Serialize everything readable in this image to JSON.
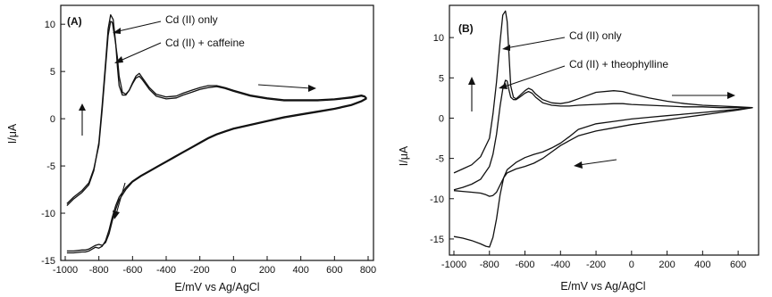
{
  "chart_data": [
    {
      "type": "line",
      "panel_label": "(A)",
      "xlabel": "E/mV vs Ag/AgCl",
      "ylabel": "I/μA",
      "xlim": [
        -1000,
        800
      ],
      "ylim": [
        -15,
        12
      ],
      "x_ticks": [
        -1000,
        -800,
        -600,
        -400,
        -200,
        0,
        200,
        400,
        600,
        800
      ],
      "x_tick_labels": [
        "-1000",
        "-800",
        "-600",
        "-400",
        "-200",
        "0",
        "200",
        "400",
        "600",
        "800"
      ],
      "y_ticks": [
        -15,
        -10,
        -5,
        0,
        5,
        10
      ],
      "y_tick_labels": [
        "-15",
        "-10",
        "-5",
        "0",
        "5",
        "10"
      ],
      "grid": false,
      "annotations": [
        "Cd (II) only",
        "Cd (II) + caffeine"
      ],
      "series": [
        {
          "name": "Cd (II) only",
          "x": [
            -990,
            -950,
            -900,
            -860,
            -830,
            -800,
            -780,
            -760,
            -745,
            -730,
            -715,
            -700,
            -690,
            -680,
            -660,
            -640,
            -620,
            -600,
            -580,
            -560,
            -540,
            -500,
            -460,
            -400,
            -340,
            -300,
            -250,
            -200,
            -150,
            -100,
            -50,
            0,
            100,
            200,
            300,
            400,
            500,
            600,
            700,
            760,
            780,
            790,
            760,
            700,
            600,
            500,
            400,
            300,
            200,
            100,
            0,
            -50,
            -100,
            -150,
            -200,
            -250,
            -300,
            -350,
            -400,
            -450,
            -500,
            -550,
            -600,
            -640,
            -680,
            -700,
            -720,
            -740,
            -760,
            -780,
            -800,
            -820,
            -840,
            -860,
            -880,
            -900,
            -950,
            -990
          ],
          "y": [
            -9.2,
            -8.5,
            -7.8,
            -7.0,
            -5.5,
            -2.5,
            1.5,
            6.0,
            9.5,
            11.0,
            10.5,
            8.0,
            5.5,
            3.5,
            2.5,
            2.5,
            3.0,
            3.8,
            4.5,
            4.8,
            4.3,
            3.3,
            2.6,
            2.3,
            2.4,
            2.7,
            3.0,
            3.3,
            3.5,
            3.5,
            3.3,
            3.0,
            2.5,
            2.2,
            2.0,
            2.0,
            2.0,
            2.1,
            2.3,
            2.5,
            2.4,
            2.2,
            1.9,
            1.5,
            1.1,
            0.8,
            0.5,
            0.2,
            -0.2,
            -0.6,
            -1.0,
            -1.3,
            -1.6,
            -2.0,
            -2.5,
            -3.0,
            -3.5,
            -4.0,
            -4.5,
            -5.0,
            -5.5,
            -6.0,
            -6.6,
            -7.3,
            -8.3,
            -9.2,
            -10.4,
            -11.8,
            -12.9,
            -13.5,
            -13.7,
            -13.6,
            -13.8,
            -14.0,
            -14.1,
            -14.1,
            -14.2,
            -14.2
          ]
        },
        {
          "name": "Cd (II) + caffeine",
          "x": [
            -990,
            -950,
            -900,
            -860,
            -830,
            -800,
            -780,
            -760,
            -745,
            -730,
            -720,
            -705,
            -690,
            -680,
            -660,
            -640,
            -620,
            -600,
            -580,
            -560,
            -540,
            -500,
            -460,
            -400,
            -340,
            -300,
            -250,
            -200,
            -150,
            -100,
            -50,
            0,
            100,
            200,
            300,
            400,
            500,
            600,
            700,
            760,
            780,
            790,
            760,
            700,
            600,
            500,
            400,
            300,
            200,
            100,
            0,
            -50,
            -100,
            -150,
            -200,
            -250,
            -300,
            -350,
            -400,
            -450,
            -500,
            -550,
            -600,
            -640,
            -680,
            -700,
            -720,
            -740,
            -760,
            -780,
            -800,
            -820,
            -840,
            -860,
            -880,
            -900,
            -950,
            -990
          ],
          "y": [
            -9.0,
            -8.3,
            -7.6,
            -6.8,
            -5.3,
            -2.8,
            1.0,
            5.5,
            8.8,
            10.3,
            10.2,
            8.5,
            6.5,
            4.5,
            2.8,
            2.6,
            3.0,
            3.7,
            4.3,
            4.5,
            4.1,
            3.1,
            2.4,
            2.1,
            2.2,
            2.5,
            2.8,
            3.1,
            3.3,
            3.4,
            3.2,
            2.9,
            2.4,
            2.1,
            1.9,
            1.9,
            1.9,
            2.0,
            2.2,
            2.4,
            2.3,
            2.1,
            1.8,
            1.4,
            1.0,
            0.7,
            0.4,
            0.1,
            -0.3,
            -0.7,
            -1.1,
            -1.4,
            -1.7,
            -2.1,
            -2.6,
            -3.1,
            -3.6,
            -4.1,
            -4.6,
            -5.1,
            -5.6,
            -6.1,
            -6.7,
            -7.5,
            -8.6,
            -9.6,
            -10.8,
            -12.2,
            -13.1,
            -13.4,
            -13.3,
            -13.4,
            -13.6,
            -13.8,
            -13.9,
            -13.9,
            -14.0,
            -14.0
          ]
        }
      ]
    },
    {
      "type": "line",
      "panel_label": "(B)",
      "xlabel": "E/mV vs Ag/AgCl",
      "ylabel": "I/μA",
      "xlim": [
        -1000,
        700
      ],
      "ylim": [
        -17,
        14
      ],
      "x_ticks": [
        -1000,
        -800,
        -600,
        -400,
        -200,
        0,
        200,
        400,
        600
      ],
      "x_tick_labels": [
        "-1000",
        "-800",
        "-600",
        "-400",
        "-200",
        "0",
        "200",
        "400",
        "600"
      ],
      "y_ticks": [
        -15,
        -10,
        -5,
        0,
        5,
        10
      ],
      "y_tick_labels": [
        "-15",
        "-10",
        "-5",
        "0",
        "5",
        "10"
      ],
      "grid": false,
      "annotations": [
        "Cd (II) only",
        "Cd (II) + theophylline"
      ],
      "series": [
        {
          "name": "Cd (II) only",
          "x": [
            -1000,
            -950,
            -900,
            -850,
            -800,
            -780,
            -760,
            -740,
            -725,
            -710,
            -700,
            -690,
            -680,
            -665,
            -650,
            -630,
            -600,
            -580,
            -560,
            -540,
            -500,
            -450,
            -400,
            -350,
            -300,
            -200,
            -100,
            -50,
            0,
            100,
            200,
            300,
            400,
            500,
            600,
            680,
            600,
            500,
            400,
            300,
            200,
            100,
            0,
            -100,
            -200,
            -300,
            -350,
            -400,
            -450,
            -500,
            -550,
            -600,
            -650,
            -700,
            -720,
            -740,
            -760,
            -780,
            -800,
            -820,
            -850,
            -900,
            -950,
            -1000
          ],
          "y": [
            -6.8,
            -6.3,
            -5.8,
            -4.8,
            -2.5,
            0.5,
            4.5,
            9.5,
            12.8,
            13.3,
            12.0,
            8.0,
            4.0,
            2.6,
            2.4,
            2.8,
            3.4,
            3.7,
            3.5,
            3.0,
            2.3,
            1.9,
            1.8,
            2.0,
            2.4,
            3.2,
            3.4,
            3.3,
            3.0,
            2.5,
            2.1,
            1.8,
            1.6,
            1.5,
            1.4,
            1.3,
            1.1,
            0.9,
            0.7,
            0.5,
            0.3,
            0.1,
            -0.1,
            -0.4,
            -0.7,
            -1.4,
            -2.3,
            -3.1,
            -3.7,
            -4.2,
            -4.5,
            -4.9,
            -5.5,
            -6.4,
            -7.4,
            -9.5,
            -12.5,
            -14.8,
            -16.0,
            -15.9,
            -15.6,
            -15.2,
            -14.9,
            -14.7
          ]
        },
        {
          "name": "Cd (II) + theophylline",
          "x": [
            -1000,
            -950,
            -900,
            -850,
            -800,
            -780,
            -760,
            -740,
            -725,
            -710,
            -700,
            -690,
            -680,
            -665,
            -650,
            -630,
            -600,
            -580,
            -560,
            -540,
            -500,
            -450,
            -400,
            -350,
            -300,
            -200,
            -100,
            -50,
            0,
            100,
            200,
            300,
            400,
            500,
            600,
            680,
            600,
            500,
            400,
            300,
            200,
            100,
            0,
            -100,
            -200,
            -300,
            -350,
            -400,
            -450,
            -500,
            -550,
            -600,
            -650,
            -700,
            -720,
            -740,
            -760,
            -780,
            -800,
            -820,
            -850,
            -900,
            -950,
            -1000
          ],
          "y": [
            -8.9,
            -8.6,
            -8.2,
            -7.6,
            -6.0,
            -4.5,
            -2.0,
            1.5,
            3.6,
            4.7,
            4.6,
            3.5,
            2.6,
            2.3,
            2.3,
            2.6,
            3.1,
            3.3,
            3.1,
            2.6,
            1.9,
            1.6,
            1.5,
            1.5,
            1.6,
            1.7,
            1.8,
            1.8,
            1.7,
            1.6,
            1.5,
            1.4,
            1.4,
            1.3,
            1.3,
            1.3,
            1.0,
            0.7,
            0.4,
            0.1,
            -0.2,
            -0.5,
            -0.8,
            -1.2,
            -1.6,
            -2.2,
            -2.8,
            -3.4,
            -4.2,
            -5.0,
            -5.6,
            -6.0,
            -6.3,
            -6.8,
            -7.4,
            -8.3,
            -9.2,
            -9.6,
            -9.7,
            -9.5,
            -9.3,
            -9.2,
            -9.1,
            -9.0
          ]
        }
      ]
    }
  ]
}
